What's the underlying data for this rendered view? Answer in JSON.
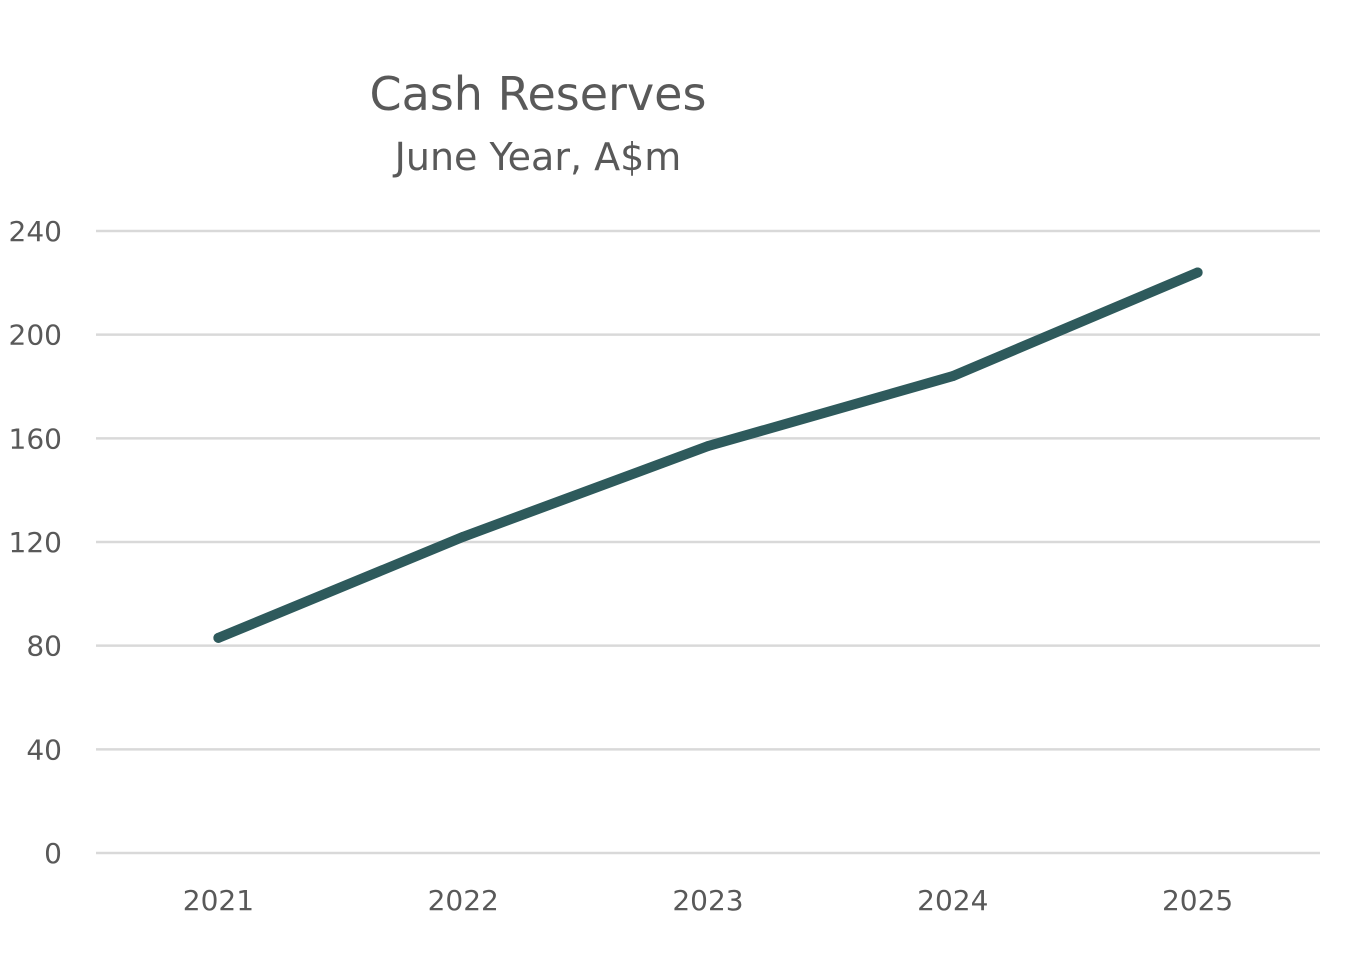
{
  "chart_data": {
    "type": "line",
    "title": "Cash Reserves",
    "subtitle": "June Year, A$m",
    "categories": [
      "2021",
      "2022",
      "2023",
      "2024",
      "2025"
    ],
    "series": [
      {
        "values": [
          83,
          122,
          157,
          184,
          224
        ],
        "color": "#2e5a5c"
      }
    ],
    "ylim": [
      0,
      240
    ],
    "yticks": [
      0,
      40,
      80,
      120,
      160,
      200,
      240
    ],
    "grid": true,
    "legend": "none",
    "gridline_color": "#d9d9d9",
    "text_color": "#595959"
  }
}
